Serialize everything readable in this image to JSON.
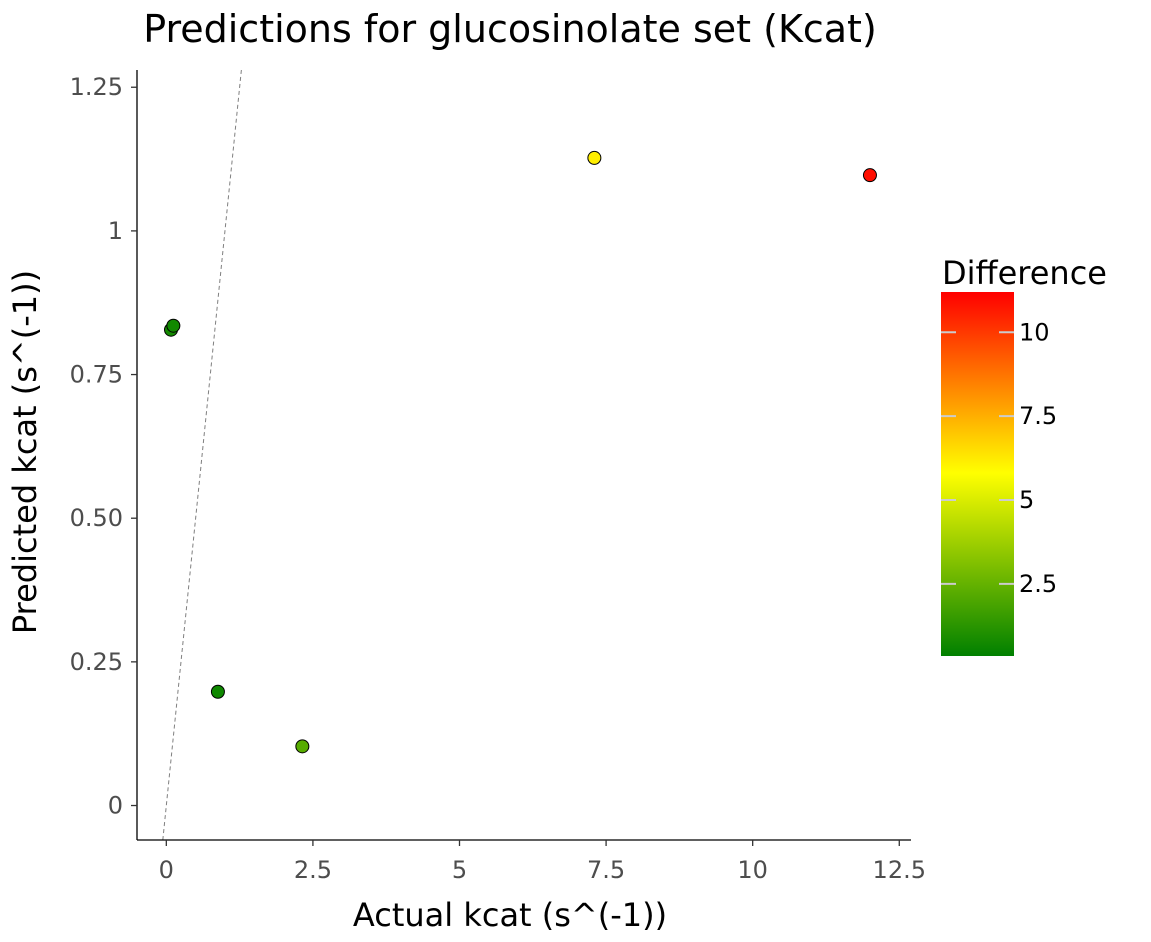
{
  "chart_data": {
    "type": "scatter",
    "title": "Predictions for glucosinolate set (Kcat)",
    "xlabel": "Actual kcat (s^(-1))",
    "ylabel": "Predicted kcat (s^(-1))",
    "xlim": [
      -0.5,
      12.7
    ],
    "ylim": [
      -0.06,
      1.28
    ],
    "x_ticks": [
      0,
      2.5,
      5,
      7.5,
      10,
      12.5
    ],
    "x_tick_labels": [
      "0",
      "2.5",
      "5",
      "7.5",
      "10",
      "12.5"
    ],
    "y_ticks": [
      0,
      0.25,
      0.5,
      0.75,
      1,
      1.25
    ],
    "y_tick_labels": [
      "0",
      "0.25",
      "0.50",
      "0.75",
      "1",
      "1.25"
    ],
    "reference_line": {
      "style": "dashed",
      "color": "#7f7f7f",
      "slope": 1,
      "intercept": 0
    },
    "grid": false,
    "color_variable": "Difference",
    "points": [
      {
        "x": 0.08,
        "y": 0.828,
        "difference": 0.75
      },
      {
        "x": 0.12,
        "y": 0.835,
        "difference": 0.71
      },
      {
        "x": 0.88,
        "y": 0.198,
        "difference": 0.68
      },
      {
        "x": 2.32,
        "y": 0.103,
        "difference": 2.22
      },
      {
        "x": 7.3,
        "y": 1.127,
        "difference": 6.17
      },
      {
        "x": 12.0,
        "y": 1.097,
        "difference": 10.9
      }
    ],
    "legend": {
      "title": "Difference",
      "position": "right",
      "range": [
        0.35,
        11.2
      ],
      "ticks": [
        2.5,
        5,
        7.5,
        10
      ],
      "tick_labels": [
        "2.5",
        "5",
        "7.5",
        "10"
      ],
      "colors": {
        "low": "#008000",
        "mid": "#ffff00",
        "high": "#ff0000"
      },
      "midpoint": 5.8
    }
  }
}
